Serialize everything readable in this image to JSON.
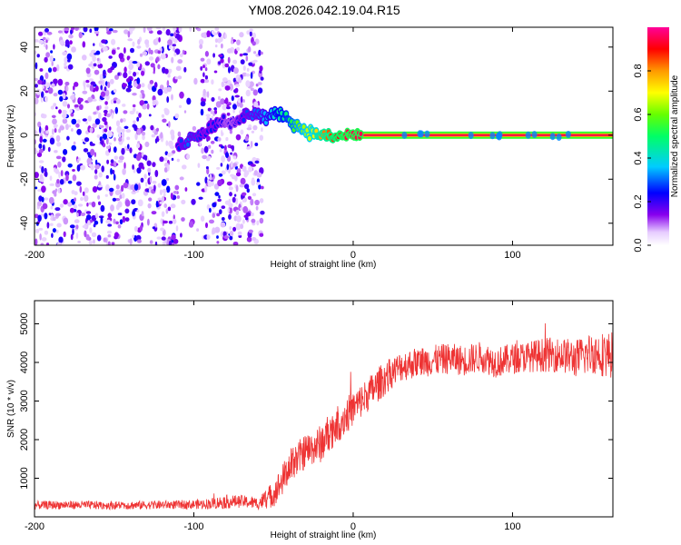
{
  "title": "YM08.2026.042.19.04.R15",
  "chart_data": [
    {
      "type": "heatmap",
      "panel": "spectrogram",
      "xlabel": "Height of straight line (km)",
      "ylabel": "Frequency (Hz)",
      "xlim": [
        -200,
        163
      ],
      "ylim": [
        -50,
        49
      ],
      "xticks": [
        -200,
        -100,
        0,
        100
      ],
      "xtick_labels": [
        "-200",
        "-100",
        "0",
        "100"
      ],
      "yticks": [
        -40,
        -20,
        0,
        20,
        40
      ],
      "ytick_labels": [
        "-40",
        "-20",
        "0",
        "20",
        "40"
      ],
      "noise_region": {
        "x_range": [
          -200,
          -57
        ],
        "description_level": "diffuse purple scatter"
      },
      "signal_track": {
        "x": [
          -110,
          -105,
          -100,
          -95,
          -90,
          -85,
          -80,
          -75,
          -70,
          -65,
          -60,
          -55,
          -50,
          -45,
          -40,
          -35,
          -30,
          -25,
          -20,
          -15,
          -10,
          -5,
          0,
          5,
          160
        ],
        "y": [
          -5,
          -3,
          0,
          1,
          3,
          6,
          7,
          4,
          8,
          10,
          10,
          8,
          9,
          10,
          7,
          4,
          2,
          1,
          0,
          -1,
          -1,
          0,
          0,
          0,
          0
        ],
        "amplitude": [
          0.25,
          0.3,
          0.3,
          0.25,
          0.25,
          0.25,
          0.2,
          0.2,
          0.25,
          0.3,
          0.3,
          0.35,
          0.4,
          0.45,
          0.5,
          0.6,
          0.65,
          0.7,
          0.8,
          0.85,
          0.9,
          0.95,
          0.95,
          0.95,
          0.95
        ]
      },
      "steady_band": {
        "x_range": [
          5,
          163
        ],
        "frequency": 0,
        "amplitude": 0.95
      },
      "colorbar": {
        "label": "Normalized spectral amplitude",
        "range": [
          0,
          1
        ],
        "ticks": [
          0.0,
          0.2,
          0.4,
          0.6,
          0.8
        ],
        "tick_labels": [
          "0.0",
          "0.2",
          "0.4",
          "0.6",
          "0.8"
        ]
      }
    },
    {
      "type": "line",
      "panel": "snr",
      "xlabel": "Height of straight line (km)",
      "ylabel": "SNR (10 * v/v)",
      "xlim": [
        -200,
        163
      ],
      "ylim": [
        0,
        5600
      ],
      "xticks": [
        -200,
        -100,
        0,
        100
      ],
      "xtick_labels": [
        "-200",
        "-100",
        "0",
        "100"
      ],
      "yticks": [
        1000,
        2000,
        3000,
        4000,
        5000
      ],
      "ytick_labels": [
        "1000",
        "2000",
        "3000",
        "4000",
        "5000"
      ],
      "series": [
        {
          "name": "SNR",
          "color": "#ee3333",
          "x": [
            -200,
            -180,
            -160,
            -140,
            -120,
            -100,
            -90,
            -80,
            -70,
            -60,
            -55,
            -50,
            -45,
            -40,
            -35,
            -30,
            -25,
            -20,
            -15,
            -10,
            -5,
            0,
            5,
            10,
            15,
            20,
            25,
            30,
            40,
            50,
            60,
            70,
            80,
            90,
            100,
            110,
            120,
            130,
            140,
            150,
            160
          ],
          "y": [
            300,
            310,
            300,
            300,
            310,
            320,
            340,
            390,
            400,
            350,
            450,
            600,
            900,
            1300,
            1500,
            1700,
            1800,
            1900,
            2200,
            2400,
            2600,
            2800,
            3000,
            3200,
            3400,
            3600,
            3750,
            3900,
            4000,
            4050,
            4100,
            4050,
            4150,
            4000,
            4100,
            4150,
            4200,
            4200,
            4100,
            4250,
            4200
          ],
          "noise_amplitude": [
            110,
            110,
            110,
            110,
            110,
            120,
            140,
            180,
            160,
            160,
            250,
            350,
            400,
            450,
            450,
            450,
            450,
            500,
            500,
            500,
            500,
            450,
            450,
            450,
            450,
            450,
            400,
            400,
            400,
            400,
            400,
            400,
            400,
            400,
            400,
            400,
            450,
            450,
            500,
            550,
            600
          ]
        }
      ]
    }
  ]
}
